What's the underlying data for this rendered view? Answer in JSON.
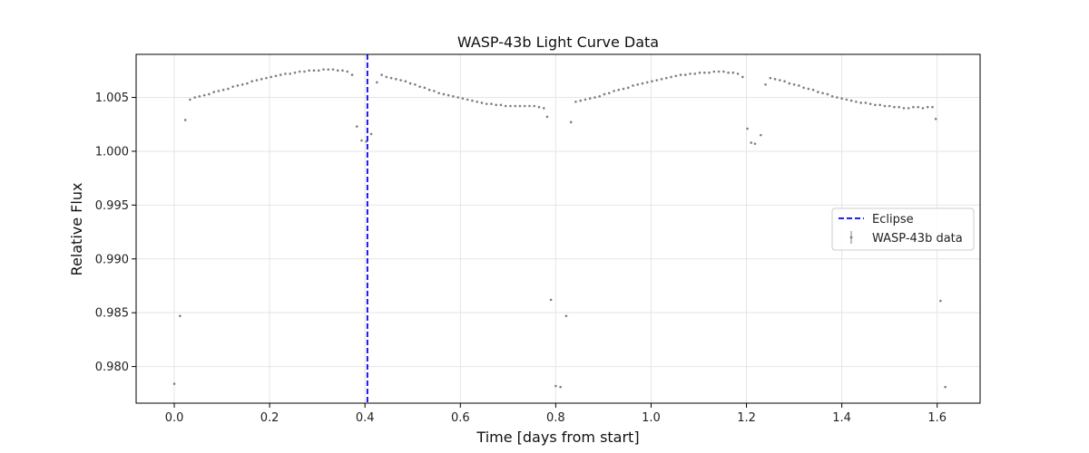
{
  "chart_data": {
    "type": "scatter",
    "title": "WASP-43b Light Curve Data",
    "xlabel": "Time [days from start]",
    "ylabel": "Relative Flux",
    "xlim": [
      -0.08,
      1.69
    ],
    "ylim": [
      0.9766,
      1.009
    ],
    "xticks": [
      0.0,
      0.2,
      0.4,
      0.6,
      0.8,
      1.0,
      1.2,
      1.4,
      1.6
    ],
    "xtick_labels": [
      "0.0",
      "0.2",
      "0.4",
      "0.6",
      "0.8",
      "1.0",
      "1.2",
      "1.4",
      "1.6"
    ],
    "yticks": [
      0.98,
      0.985,
      0.99,
      0.995,
      1.0,
      1.005
    ],
    "ytick_labels": [
      "0.980",
      "0.985",
      "0.990",
      "0.995",
      "1.000",
      "1.005"
    ],
    "grid": true,
    "legend_position": "center-right",
    "eclipse": {
      "x": 0.405,
      "label": "Eclipse",
      "color": "#0000ee",
      "style": "dashed"
    },
    "series": [
      {
        "name": "WASP-43b data",
        "color": "#7f7f7f",
        "x": [
          0.0,
          0.012,
          0.023,
          0.033,
          0.043,
          0.053,
          0.063,
          0.073,
          0.083,
          0.093,
          0.103,
          0.113,
          0.123,
          0.133,
          0.143,
          0.153,
          0.163,
          0.173,
          0.183,
          0.193,
          0.203,
          0.213,
          0.223,
          0.233,
          0.243,
          0.253,
          0.263,
          0.273,
          0.283,
          0.293,
          0.303,
          0.313,
          0.323,
          0.333,
          0.343,
          0.353,
          0.363,
          0.373,
          0.383,
          0.393,
          0.403,
          0.413,
          0.425,
          0.435,
          0.445,
          0.455,
          0.465,
          0.475,
          0.485,
          0.495,
          0.505,
          0.515,
          0.525,
          0.535,
          0.545,
          0.555,
          0.565,
          0.575,
          0.585,
          0.595,
          0.605,
          0.615,
          0.625,
          0.635,
          0.645,
          0.655,
          0.665,
          0.675,
          0.685,
          0.695,
          0.705,
          0.715,
          0.725,
          0.735,
          0.745,
          0.755,
          0.765,
          0.775,
          0.782,
          0.79,
          0.8,
          0.81,
          0.822,
          0.832,
          0.842,
          0.852,
          0.862,
          0.872,
          0.882,
          0.892,
          0.902,
          0.912,
          0.922,
          0.932,
          0.942,
          0.952,
          0.962,
          0.972,
          0.982,
          0.992,
          1.002,
          1.012,
          1.022,
          1.032,
          1.042,
          1.052,
          1.062,
          1.072,
          1.082,
          1.092,
          1.102,
          1.112,
          1.122,
          1.132,
          1.142,
          1.152,
          1.162,
          1.172,
          1.182,
          1.192,
          1.202,
          1.21,
          1.218,
          1.23,
          1.24,
          1.25,
          1.26,
          1.27,
          1.28,
          1.29,
          1.3,
          1.31,
          1.32,
          1.33,
          1.34,
          1.35,
          1.36,
          1.37,
          1.38,
          1.39,
          1.4,
          1.41,
          1.42,
          1.43,
          1.44,
          1.45,
          1.46,
          1.47,
          1.48,
          1.49,
          1.5,
          1.51,
          1.52,
          1.53,
          1.54,
          1.55,
          1.56,
          1.57,
          1.58,
          1.59,
          1.597,
          1.607,
          1.617
        ],
        "y": [
          0.9784,
          0.9847,
          1.0029,
          1.0048,
          1.005,
          1.0051,
          1.0052,
          1.0053,
          1.0055,
          1.0056,
          1.0057,
          1.0058,
          1.006,
          1.0061,
          1.0062,
          1.0063,
          1.0065,
          1.0066,
          1.0067,
          1.0068,
          1.0069,
          1.007,
          1.0071,
          1.0072,
          1.0072,
          1.0073,
          1.0074,
          1.0074,
          1.0075,
          1.0075,
          1.0075,
          1.0076,
          1.0076,
          1.0076,
          1.0075,
          1.0075,
          1.0074,
          1.0071,
          1.0023,
          1.001,
          1.0009,
          1.0016,
          1.0064,
          1.0071,
          1.0069,
          1.0068,
          1.0067,
          1.0066,
          1.0065,
          1.0063,
          1.0062,
          1.006,
          1.0059,
          1.0057,
          1.0056,
          1.0054,
          1.0053,
          1.0052,
          1.0051,
          1.005,
          1.0049,
          1.0048,
          1.0047,
          1.0046,
          1.0045,
          1.0044,
          1.0044,
          1.0043,
          1.0043,
          1.0042,
          1.0042,
          1.0042,
          1.0042,
          1.0042,
          1.0042,
          1.0042,
          1.0041,
          1.004,
          1.0032,
          0.9862,
          0.9782,
          0.9781,
          0.9847,
          1.0027,
          1.0046,
          1.0047,
          1.0048,
          1.0049,
          1.005,
          1.0051,
          1.0053,
          1.0054,
          1.0056,
          1.0057,
          1.0058,
          1.0059,
          1.0061,
          1.0062,
          1.0063,
          1.0064,
          1.0065,
          1.0066,
          1.0067,
          1.0068,
          1.0069,
          1.007,
          1.0071,
          1.0071,
          1.0072,
          1.0072,
          1.0073,
          1.0073,
          1.0073,
          1.0074,
          1.0074,
          1.0074,
          1.0073,
          1.0073,
          1.0072,
          1.0069,
          1.0021,
          1.0008,
          1.0007,
          1.0015,
          1.0062,
          1.0068,
          1.0067,
          1.0066,
          1.0065,
          1.0063,
          1.0062,
          1.0061,
          1.0059,
          1.0058,
          1.0057,
          1.0055,
          1.0054,
          1.0053,
          1.0051,
          1.005,
          1.0049,
          1.0048,
          1.0047,
          1.0046,
          1.0045,
          1.0045,
          1.0044,
          1.0043,
          1.0043,
          1.0042,
          1.0042,
          1.0041,
          1.0041,
          1.004,
          1.004,
          1.0041,
          1.0041,
          1.004,
          1.0041,
          1.0041,
          1.003,
          0.9861,
          0.9781
        ]
      }
    ]
  }
}
